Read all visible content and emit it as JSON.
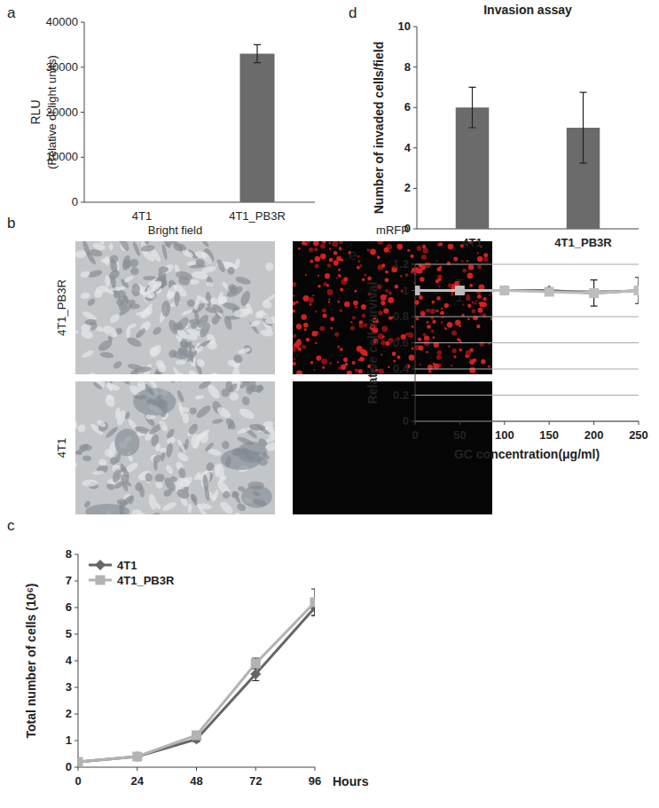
{
  "chart_data": [
    {
      "type": "bar",
      "panel_label": "a",
      "y_label": "RLU",
      "y_sublabel": "(Relative of light units)",
      "categories": [
        "4T1",
        "4T1_PB3R"
      ],
      "values": [
        0,
        33000
      ],
      "errors": [
        0,
        2000
      ],
      "color": "#6b6b6b",
      "ylim": [
        0,
        40000
      ],
      "yticks": [
        0,
        10000,
        20000,
        30000,
        40000
      ],
      "grid": false
    },
    {
      "type": "image",
      "panel_label": "b",
      "columns": [
        "Bright field",
        "mRFP"
      ],
      "rows": [
        "4T1_PB3R",
        "4T1"
      ]
    },
    {
      "type": "line",
      "panel_label": "c",
      "y_label": "Total number of cells (10⁶)",
      "x_label": "Hours",
      "x": [
        0,
        24,
        48,
        72,
        96
      ],
      "series": [
        {
          "name": "4T1",
          "color": "#666666",
          "marker": "diamond",
          "values": [
            0.2,
            0.4,
            1.05,
            3.5,
            6.0
          ],
          "errors": [
            0.02,
            0.05,
            0.1,
            0.25,
            0.3
          ]
        },
        {
          "name": "4T1_PB3R",
          "color": "#b3b3b3",
          "marker": "square",
          "values": [
            0.2,
            0.4,
            1.2,
            3.9,
            6.2
          ],
          "errors": [
            0.02,
            0.05,
            0.1,
            0.2,
            0.5
          ]
        }
      ],
      "xlim": [
        0,
        96
      ],
      "xticks": [
        0,
        24,
        48,
        72,
        96
      ],
      "ylim": [
        0,
        8
      ],
      "yticks": [
        0,
        1,
        2,
        3,
        4,
        5,
        6,
        7,
        8
      ],
      "grid": false,
      "legend": "top-left"
    },
    {
      "type": "bar",
      "panel_label": "d",
      "title": "Invasion assay",
      "y_label": "Number of invaded cells/field",
      "categories": [
        "4T1",
        "4T1_PB3R"
      ],
      "values": [
        6,
        5
      ],
      "errors": [
        1,
        1.75
      ],
      "color": "#6b6b6b",
      "ylim": [
        0,
        10
      ],
      "yticks": [
        0,
        2,
        4,
        6,
        8,
        10
      ],
      "grid": false
    },
    {
      "type": "line",
      "panel_label": "e",
      "y_label": "Relative cell survival",
      "x_label": "GC concentration(μg/ml)",
      "x": [
        0,
        50,
        100,
        150,
        200,
        250
      ],
      "series": [
        {
          "color": "#666666",
          "marker": "diamond",
          "values": [
            1,
            1,
            1,
            1,
            0.98,
            1
          ]
        },
        {
          "color": "#bdbdbd",
          "marker": "square",
          "values": [
            1,
            1,
            1,
            0.99,
            0.98,
            1
          ],
          "errors": [
            0,
            0.08,
            0.02,
            0.02,
            0.1,
            0.1
          ]
        }
      ],
      "xlim": [
        0,
        250
      ],
      "xticks": [
        0,
        50,
        100,
        150,
        200,
        250
      ],
      "ylim": [
        0,
        1.2
      ],
      "yticks": [
        0,
        0.2,
        0.4,
        0.6,
        0.8,
        1,
        1.2
      ],
      "grid": true
    }
  ]
}
